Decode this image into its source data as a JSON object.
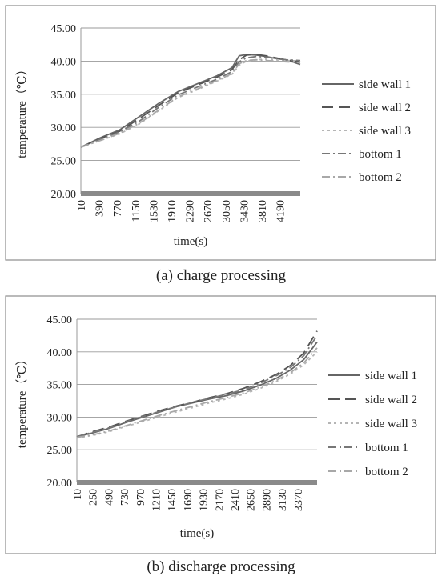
{
  "captions": {
    "a": "(a) charge processing",
    "b": "(b) discharge processing"
  },
  "colors": {
    "side_wall_1": "#666666",
    "side_wall_2": "#555555",
    "side_wall_3": "#b5b5b5",
    "bottom_1": "#777777",
    "bottom_2": "#a8a8a8",
    "grid": "#9a9a9a",
    "baseline": "#8a8a8a",
    "frame": "#8c8c8c"
  },
  "chart_data": [
    {
      "type": "line",
      "xlabel": "time(s)",
      "ylabel": "temperature（℃）",
      "ylim": [
        20,
        45
      ],
      "yticks": [
        "20.00",
        "25.00",
        "30.00",
        "35.00",
        "40.00",
        "45.00"
      ],
      "xticks": [
        "10",
        "390",
        "770",
        "1150",
        "1530",
        "1910",
        "2290",
        "2670",
        "3050",
        "3430",
        "3810",
        "4190"
      ],
      "xlim": [
        10,
        4500
      ],
      "grid": true,
      "legend": "right",
      "series": [
        {
          "name": "side wall 1",
          "style": "solid",
          "color_key": "side_wall_1",
          "x": [
            10,
            400,
            800,
            1200,
            1600,
            2000,
            2400,
            2800,
            3100,
            3250,
            3400,
            3600,
            3800,
            4000,
            4200,
            4500
          ],
          "y": [
            27.0,
            28.4,
            29.6,
            31.6,
            33.6,
            35.4,
            36.6,
            37.8,
            39.0,
            40.8,
            41.0,
            40.9,
            40.7,
            40.4,
            40.2,
            39.5
          ]
        },
        {
          "name": "side wall 2",
          "style": "dashed",
          "color_key": "side_wall_2",
          "x": [
            10,
            400,
            800,
            1200,
            1600,
            2000,
            2400,
            2800,
            3100,
            3250,
            3400,
            3600,
            3800,
            4000,
            4200,
            4500
          ],
          "y": [
            27.0,
            28.3,
            29.4,
            31.3,
            33.3,
            35.2,
            36.4,
            37.6,
            38.7,
            40.2,
            40.9,
            41.0,
            40.8,
            40.5,
            40.2,
            39.9
          ]
        },
        {
          "name": "side wall 3",
          "style": "dotted",
          "color_key": "side_wall_3",
          "x": [
            10,
            400,
            800,
            1200,
            1600,
            2000,
            2400,
            2800,
            3100,
            3250,
            3400,
            3600,
            3800,
            4000,
            4200,
            4500
          ],
          "y": [
            27.0,
            28.0,
            29.0,
            30.5,
            32.5,
            34.5,
            35.7,
            37.0,
            38.0,
            39.4,
            40.0,
            40.2,
            40.3,
            40.2,
            40.1,
            40.0
          ]
        },
        {
          "name": "bottom 1",
          "style": "dashdot",
          "color_key": "bottom_1",
          "x": [
            10,
            400,
            800,
            1200,
            1600,
            2000,
            2400,
            2800,
            3100,
            3250,
            3400,
            3600,
            3800,
            4000,
            4200,
            4500
          ],
          "y": [
            27.0,
            28.2,
            29.3,
            30.9,
            33.0,
            34.9,
            36.1,
            37.3,
            38.4,
            39.9,
            40.5,
            40.7,
            40.6,
            40.4,
            40.2,
            40.1
          ]
        },
        {
          "name": "bottom 2",
          "style": "dashdot",
          "color_key": "bottom_2",
          "x": [
            10,
            400,
            800,
            1200,
            1600,
            2000,
            2400,
            2800,
            3100,
            3250,
            3400,
            3600,
            3800,
            4000,
            4200,
            4500
          ],
          "y": [
            27.0,
            28.0,
            29.1,
            30.6,
            32.6,
            34.6,
            35.8,
            37.1,
            38.1,
            39.6,
            40.1,
            40.2,
            40.1,
            40.0,
            39.9,
            39.8
          ]
        }
      ]
    },
    {
      "type": "line",
      "xlabel": "time(s)",
      "ylabel": "temperature（℃）",
      "ylim": [
        20,
        45
      ],
      "yticks": [
        "20.00",
        "25.00",
        "30.00",
        "35.00",
        "40.00",
        "45.00"
      ],
      "xticks": [
        "10",
        "250",
        "490",
        "730",
        "970",
        "1210",
        "1450",
        "1690",
        "1930",
        "2170",
        "2410",
        "2650",
        "2890",
        "3130",
        "3370"
      ],
      "xlim": [
        10,
        3600
      ],
      "grid": true,
      "legend": "right",
      "series": [
        {
          "name": "side wall 1",
          "style": "solid",
          "color_key": "side_wall_1",
          "x": [
            10,
            250,
            500,
            750,
            1000,
            1250,
            1500,
            1750,
            2000,
            2250,
            2500,
            2750,
            3000,
            3200,
            3400,
            3600
          ],
          "y": [
            27.0,
            27.6,
            28.3,
            29.2,
            30.0,
            30.8,
            31.6,
            32.2,
            32.8,
            33.3,
            34.0,
            34.9,
            36.0,
            37.2,
            38.8,
            41.5
          ]
        },
        {
          "name": "side wall 2",
          "style": "dashed",
          "color_key": "side_wall_2",
          "x": [
            10,
            250,
            500,
            750,
            1000,
            1250,
            1500,
            1750,
            2000,
            2250,
            2500,
            2750,
            3000,
            3200,
            3400,
            3600
          ],
          "y": [
            27.0,
            27.8,
            28.5,
            29.4,
            30.2,
            31.0,
            31.7,
            32.3,
            33.0,
            33.6,
            34.4,
            35.4,
            36.6,
            37.9,
            39.8,
            43.2
          ]
        },
        {
          "name": "side wall 3",
          "style": "dotted",
          "color_key": "side_wall_3",
          "x": [
            10,
            250,
            500,
            750,
            1000,
            1250,
            1500,
            1750,
            2000,
            2250,
            2500,
            2750,
            3000,
            3200,
            3400,
            3600
          ],
          "y": [
            26.8,
            27.2,
            27.8,
            28.6,
            29.3,
            30.1,
            30.8,
            31.5,
            32.2,
            32.8,
            33.5,
            34.4,
            35.5,
            36.6,
            38.0,
            40.0
          ]
        },
        {
          "name": "bottom 1",
          "style": "dashdot",
          "color_key": "bottom_1",
          "x": [
            10,
            250,
            500,
            750,
            1000,
            1250,
            1500,
            1750,
            2000,
            2250,
            2500,
            2750,
            3000,
            3200,
            3400,
            3600
          ],
          "y": [
            27.0,
            27.7,
            28.4,
            29.3,
            30.1,
            30.9,
            31.6,
            32.3,
            32.9,
            33.5,
            34.2,
            35.2,
            36.4,
            37.6,
            39.4,
            42.5
          ]
        },
        {
          "name": "bottom 2",
          "style": "dashdot",
          "color_key": "bottom_2",
          "x": [
            10,
            250,
            500,
            750,
            1000,
            1250,
            1500,
            1750,
            2000,
            2250,
            2500,
            2750,
            3000,
            3200,
            3400,
            3600
          ],
          "y": [
            26.9,
            27.3,
            27.9,
            28.7,
            29.5,
            30.3,
            31.0,
            31.7,
            32.4,
            33.0,
            33.7,
            34.6,
            35.7,
            36.8,
            38.3,
            40.6
          ]
        }
      ]
    }
  ]
}
